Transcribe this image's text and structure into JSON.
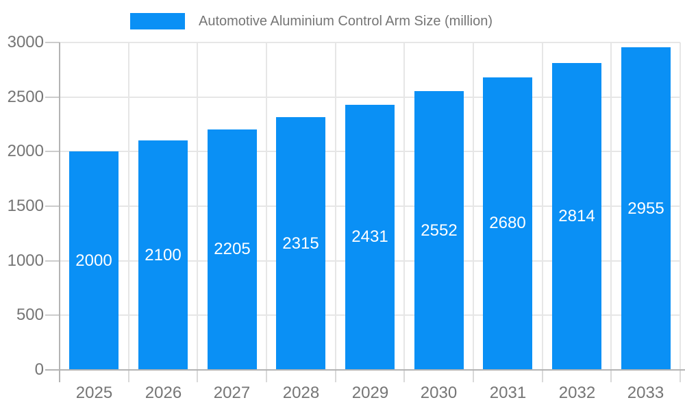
{
  "legend": {
    "label": "Automotive Aluminium Control Arm Size (million)"
  },
  "chart_data": {
    "type": "bar",
    "title": "Automotive Aluminium Control Arm Size (million)",
    "categories": [
      "2025",
      "2026",
      "2027",
      "2028",
      "2029",
      "2030",
      "2031",
      "2032",
      "2033"
    ],
    "values": [
      2000,
      2100,
      2205,
      2315,
      2431,
      2552,
      2680,
      2814,
      2955
    ],
    "value_labels": [
      "2000",
      "2100",
      "2205",
      "2315",
      "2431",
      "2552",
      "2680",
      "2814",
      "2955"
    ],
    "xlabel": "",
    "ylabel": "",
    "ylim": [
      0,
      3000
    ],
    "yticks": [
      0,
      500,
      1000,
      1500,
      2000,
      2500,
      3000
    ],
    "ytick_labels": [
      "0",
      "500",
      "1000",
      "1500",
      "2000",
      "2500",
      "3000"
    ],
    "grid": true,
    "legend_position": "top"
  },
  "colors": {
    "bar": "#0a90f5",
    "grid": "#e6e6e6",
    "axis": "#b3b3b3",
    "y_tick": "#cccccc",
    "x_tick": "#d9d9d9",
    "text": "#757575",
    "value_label": "#ffffff",
    "background": "#ffffff"
  }
}
